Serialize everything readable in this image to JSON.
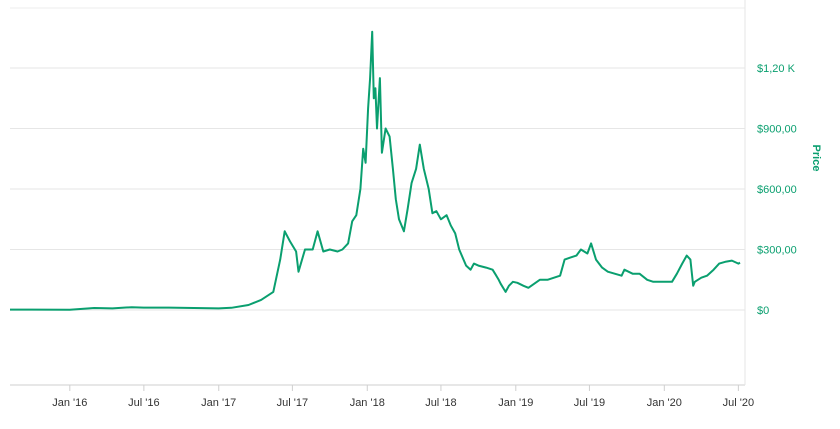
{
  "chart_data": {
    "type": "line",
    "title": "",
    "xlabel": "",
    "ylabel": "Price",
    "ylim": [
      -250,
      1400
    ],
    "xlim": [
      "2015-08-07",
      "2020-07-05"
    ],
    "grid": true,
    "line_color": "#0a9f6f",
    "x_ticks": [
      {
        "date": "2016-01-01",
        "label": "Jan '16"
      },
      {
        "date": "2016-07-01",
        "label": "Jul '16"
      },
      {
        "date": "2017-01-01",
        "label": "Jan '17"
      },
      {
        "date": "2017-07-01",
        "label": "Jul '17"
      },
      {
        "date": "2018-01-01",
        "label": "Jan '18"
      },
      {
        "date": "2018-07-01",
        "label": "Jul '18"
      },
      {
        "date": "2019-01-01",
        "label": "Jan '19"
      },
      {
        "date": "2019-07-01",
        "label": "Jul '19"
      },
      {
        "date": "2020-01-01",
        "label": "Jan '20"
      },
      {
        "date": "2020-07-01",
        "label": "Jul '20"
      }
    ],
    "y_ticks": [
      {
        "value": 0,
        "label": "$0"
      },
      {
        "value": 300,
        "label": "$300,00"
      },
      {
        "value": 600,
        "label": "$600,00"
      },
      {
        "value": 900,
        "label": "$900,00"
      },
      {
        "value": 1200,
        "label": "$1,20 K"
      }
    ],
    "series": [
      {
        "x": [
          "2015-08-07",
          "2015-10-01",
          "2016-01-01",
          "2016-03-01",
          "2016-04-15",
          "2016-06-01",
          "2016-07-01",
          "2016-09-01",
          "2016-11-01",
          "2017-01-01",
          "2017-02-01",
          "2017-03-15",
          "2017-04-15",
          "2017-05-15",
          "2017-06-01",
          "2017-06-12",
          "2017-06-25",
          "2017-07-10",
          "2017-07-16",
          "2017-08-01",
          "2017-08-20",
          "2017-09-01",
          "2017-09-15",
          "2017-10-01",
          "2017-10-20",
          "2017-11-01",
          "2017-11-15",
          "2017-11-25",
          "2017-12-05",
          "2017-12-15",
          "2017-12-22",
          "2017-12-28",
          "2018-01-03",
          "2018-01-08",
          "2018-01-13",
          "2018-01-17",
          "2018-01-21",
          "2018-01-25",
          "2018-02-01",
          "2018-02-06",
          "2018-02-15",
          "2018-02-25",
          "2018-03-05",
          "2018-03-12",
          "2018-03-20",
          "2018-04-01",
          "2018-04-10",
          "2018-04-20",
          "2018-05-01",
          "2018-05-10",
          "2018-05-20",
          "2018-06-01",
          "2018-06-10",
          "2018-06-20",
          "2018-07-01",
          "2018-07-15",
          "2018-07-25",
          "2018-08-05",
          "2018-08-15",
          "2018-09-01",
          "2018-09-12",
          "2018-09-20",
          "2018-10-01",
          "2018-10-20",
          "2018-11-05",
          "2018-11-14",
          "2018-11-20",
          "2018-11-25",
          "2018-12-07",
          "2018-12-15",
          "2018-12-25",
          "2019-01-05",
          "2019-01-20",
          "2019-02-01",
          "2019-02-15",
          "2019-03-01",
          "2019-03-20",
          "2019-04-05",
          "2019-04-20",
          "2019-05-01",
          "2019-05-15",
          "2019-05-30",
          "2019-06-10",
          "2019-06-26",
          "2019-07-05",
          "2019-07-17",
          "2019-08-01",
          "2019-08-15",
          "2019-09-01",
          "2019-09-18",
          "2019-09-25",
          "2019-10-15",
          "2019-11-01",
          "2019-11-20",
          "2019-12-05",
          "2019-12-18",
          "2020-01-01",
          "2020-01-20",
          "2020-02-01",
          "2020-02-14",
          "2020-02-25",
          "2020-03-05",
          "2020-03-12",
          "2020-03-16",
          "2020-04-01",
          "2020-04-15",
          "2020-05-01",
          "2020-05-15",
          "2020-06-01",
          "2020-06-15",
          "2020-07-01",
          "2020-07-05"
        ],
        "values": [
          2,
          2,
          1,
          10,
          8,
          14,
          12,
          12,
          10,
          8,
          11,
          25,
          50,
          90,
          250,
          390,
          340,
          290,
          190,
          300,
          300,
          390,
          290,
          300,
          290,
          300,
          330,
          440,
          470,
          600,
          800,
          730,
          1000,
          1150,
          1380,
          1050,
          1100,
          900,
          1150,
          780,
          900,
          860,
          700,
          550,
          450,
          390,
          500,
          630,
          700,
          820,
          700,
          600,
          480,
          490,
          450,
          470,
          420,
          380,
          300,
          220,
          200,
          230,
          220,
          210,
          200,
          170,
          150,
          130,
          90,
          120,
          140,
          135,
          120,
          110,
          130,
          150,
          150,
          160,
          170,
          250,
          260,
          270,
          300,
          280,
          330,
          250,
          210,
          190,
          180,
          170,
          200,
          180,
          180,
          150,
          140,
          140,
          140,
          140,
          180,
          230,
          270,
          250,
          120,
          140,
          160,
          170,
          200,
          230,
          240,
          245,
          230,
          235
        ]
      }
    ]
  }
}
